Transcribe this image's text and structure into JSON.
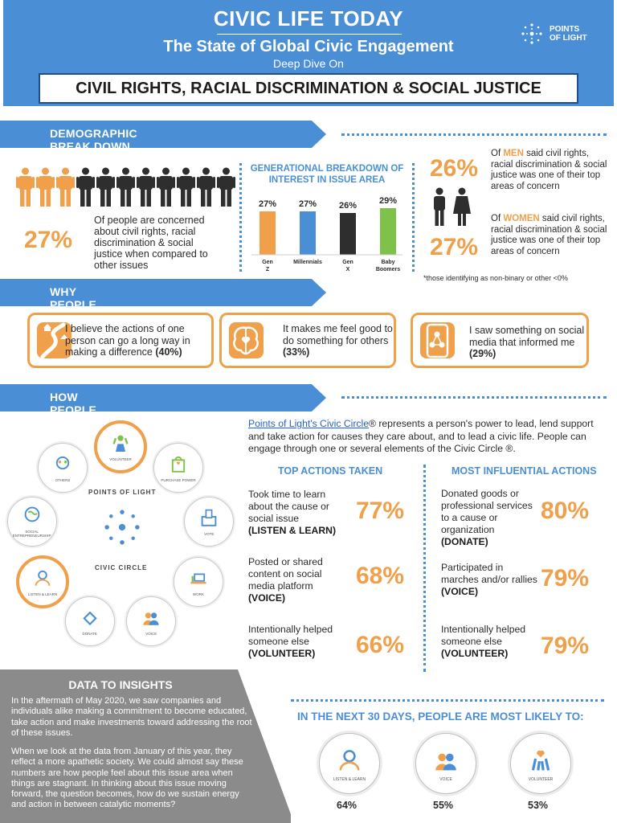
{
  "header": {
    "title": "CIVIC LIFE TODAY",
    "subtitle": "The State of Global Civic Engagement",
    "deep_dive": "Deep Dive On",
    "topic": "CIVIL RIGHTS, RACIAL DISCRIMINATION & SOCIAL JUSTICE",
    "logo_line1": "POINTS",
    "logo_line2": "OF LIGHT"
  },
  "sections": {
    "demographic": "DEMOGRAPHIC BREAK DOWN",
    "why": "WHY PEOPLE ARE TAKING ACTION",
    "how": "HOW PEOPLE ARE TAKING ACTION"
  },
  "demographic": {
    "overall_pct": "27%",
    "overall_text": "Of people are concerned about civil rights, racial discrimination & social justice when compared to other issues",
    "people_highlighted": 3,
    "people_total": 11,
    "men_pct": "26%",
    "men_prefix": "Of ",
    "men_word": "MEN",
    "men_text": " said civil rights, racial discrimination & social justice was one of their top areas of concern",
    "women_pct": "27%",
    "women_prefix": "Of ",
    "women_word": "WOMEN",
    "women_text": " said civil rights, racial discrimination & social justice was one of their top areas of concern",
    "footnote": "*those identifying as non-binary or other <0%"
  },
  "chart_data": {
    "type": "bar",
    "title": "GENERATIONAL BREAKDOWN OF INTEREST IN ISSUE AREA",
    "categories": [
      "Gen Z",
      "Millennials",
      "Gen X",
      "Baby Boomers"
    ],
    "values": [
      27,
      27,
      26,
      29
    ],
    "value_labels": [
      "27%",
      "27%",
      "26%",
      "29%"
    ],
    "colors": [
      "#f0a04b",
      "#4a8fd6",
      "#2e2e2e",
      "#7ec24a"
    ],
    "xlabel": "",
    "ylabel": ""
  },
  "why": [
    {
      "text": "I believe the actions of one person can go a long way in making a difference ",
      "pct": "(40%)",
      "icon": "path-icon"
    },
    {
      "text": "It makes me feel good to do something for others ",
      "pct": "(33%)",
      "icon": "brain-heart-icon"
    },
    {
      "text": "I saw something on social media that informed me ",
      "pct": "(29%)",
      "icon": "phone-network-icon"
    }
  ],
  "how": {
    "intro_link": "Points of Light's Civic Circle",
    "intro_rest": "® represents a person's power to lead, lend support and take action for causes they care about, and to lead a civic life. People can engage through one or several elements of the Civic Circle ®.",
    "top_head": "TOP ACTIONS TAKEN",
    "most_head": "MOST INFLUENTIAL ACTIONS",
    "top": [
      {
        "text": "Took time to learn about the cause or social issue",
        "caps": "(LISTEN & LEARN)",
        "pct": "77%"
      },
      {
        "text": "Posted or shared content on social media platform",
        "caps": "(VOICE)",
        "pct": "68%"
      },
      {
        "text": "Intentionally helped someone else",
        "caps": "(VOLUNTEER)",
        "pct": "66%"
      }
    ],
    "most": [
      {
        "text": "Donated goods or professional services to a cause or organization",
        "caps": "(DONATE)",
        "pct": "80%"
      },
      {
        "text": "Participated in marches and/or rallies",
        "caps": "(VOICE)",
        "pct": "79%"
      },
      {
        "text": "Intentionally helped someone else",
        "caps": "(VOLUNTEER)",
        "pct": "79%"
      }
    ]
  },
  "civic_circle": {
    "center_top": "POINTS OF LIGHT",
    "center_bottom": "CIVIC CIRCLE",
    "nodes": [
      {
        "label": "VOLUNTEER",
        "icon": "raised-hands-icon",
        "highlight": true
      },
      {
        "label": "PURCHASE POWER",
        "icon": "shopping-bag-icon",
        "highlight": false
      },
      {
        "label": "VOTE",
        "icon": "ballot-box-icon",
        "highlight": false
      },
      {
        "label": "WORK",
        "icon": "desk-icon",
        "highlight": false
      },
      {
        "label": "VOICE",
        "icon": "people-speaking-icon",
        "highlight": false
      },
      {
        "label": "DONATE",
        "icon": "heart-hand-icon",
        "highlight": false
      },
      {
        "label": "LISTEN & LEARN",
        "icon": "person-listening-icon",
        "highlight": true
      },
      {
        "label": "SOCIAL ENTREPRENEURSHIP",
        "icon": "globe-icon",
        "highlight": false
      },
      {
        "label": "OTHERS",
        "icon": "people-cycle-icon",
        "highlight": false
      }
    ]
  },
  "insights": {
    "title": "DATA TO INSIGHTS",
    "p1": "In the aftermath of May 2020, we saw companies and individuals alike making a commitment to become educated, take action and make investments toward addressing the root of these issues.",
    "p2": "When we look at the data from January of this year, they reflect a more apathetic society. We could almost say these numbers are how people feel about this issue area when things are stagnant. In thinking about this issue moving forward, the question becomes, how do we sustain energy and action in between catalytic moments?"
  },
  "next30": {
    "title": "IN THE NEXT 30 DAYS, PEOPLE ARE MOST LIKELY TO:",
    "items": [
      {
        "label": "LISTEN & LEARN",
        "pct": "64%",
        "icon": "person-listening-icon"
      },
      {
        "label": "VOICE",
        "pct": "55%",
        "icon": "people-speaking-icon"
      },
      {
        "label": "VOLUNTEER",
        "pct": "53%",
        "icon": "raised-hands-icon"
      }
    ]
  }
}
